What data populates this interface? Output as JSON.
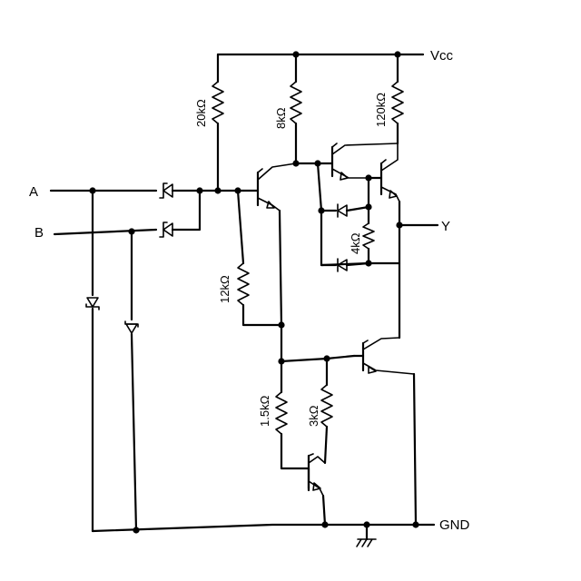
{
  "inputs": {
    "a": "A",
    "b": "B"
  },
  "output": {
    "y": "Y"
  },
  "supply": {
    "vcc": "Vcc",
    "gnd": "GND"
  },
  "resistors": {
    "r20k": "20kΩ",
    "r8k": "8kΩ",
    "r120k": "120kΩ",
    "r12k": "12kΩ",
    "r4k": "4kΩ",
    "r1_5k": "1.5kΩ",
    "r3k": "3kΩ"
  },
  "colors": {
    "ink": "#000000",
    "paper": "#ffffff"
  }
}
